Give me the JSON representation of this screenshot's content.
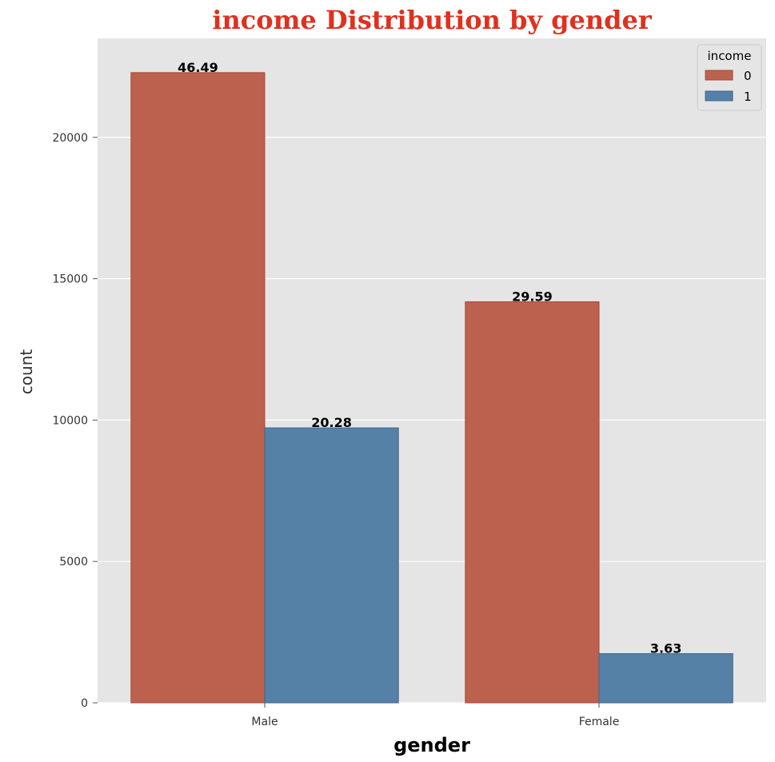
{
  "chart_data": {
    "type": "bar",
    "title": "income Distribution by gender",
    "title_color": "#e0301e",
    "xlabel": "gender",
    "ylabel": "count",
    "categories": [
      "Male",
      "Female"
    ],
    "series": [
      {
        "name": "0",
        "color": "#bc614e",
        "values": [
          22290,
          14185
        ],
        "labels": [
          "46.49",
          "29.59"
        ]
      },
      {
        "name": "1",
        "color": "#5581a7",
        "values": [
          9725,
          1740
        ],
        "labels": [
          "20.28",
          "3.63"
        ]
      }
    ],
    "ylim": [
      0,
      23500
    ],
    "yticks": [
      0,
      5000,
      10000,
      15000,
      20000
    ],
    "ytick_labels": [
      "0",
      "5000",
      "10000",
      "15000",
      "20000"
    ],
    "legend": {
      "title": "income",
      "position": "top-right"
    },
    "grid": true,
    "background": "#e5e5e5"
  }
}
